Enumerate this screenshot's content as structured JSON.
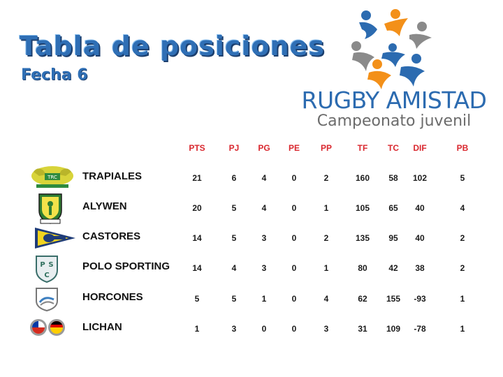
{
  "header": {
    "title": "Tabla de posiciones",
    "subtitle": "Fecha 6"
  },
  "brand": {
    "name": "RUGBY AMISTAD",
    "tagline": "Campeonato juvenil",
    "colors": {
      "blue": "#2c6bb0",
      "orange": "#f39019",
      "gray": "#8a8a8a"
    }
  },
  "table": {
    "columns": [
      "PTS",
      "PJ",
      "PG",
      "PE",
      "PP",
      "TF",
      "TC",
      "DIF",
      "PB"
    ],
    "rows": [
      {
        "team": "TRAPIALES",
        "crest": "trapiales-crest-icon",
        "stats": [
          "21",
          "6",
          "4",
          "0",
          "2",
          "160",
          "58",
          "102",
          "5"
        ]
      },
      {
        "team": "ALYWEN",
        "crest": "alywen-crest-icon",
        "stats": [
          "20",
          "5",
          "4",
          "0",
          "1",
          "105",
          "65",
          "40",
          "4"
        ]
      },
      {
        "team": "CASTORES",
        "crest": "castores-pennant-icon",
        "stats": [
          "14",
          "5",
          "3",
          "0",
          "2",
          "135",
          "95",
          "40",
          "2"
        ]
      },
      {
        "team": "POLO SPORTING",
        "crest": "polo-sporting-shield-icon",
        "stats": [
          "14",
          "4",
          "3",
          "0",
          "1",
          "80",
          "42",
          "38",
          "2"
        ]
      },
      {
        "team": "HORCONES",
        "crest": "horcones-shield-icon",
        "stats": [
          "5",
          "5",
          "1",
          "0",
          "4",
          "62",
          "155",
          "-93",
          "1"
        ]
      },
      {
        "team": "LICHAN",
        "crest": "lichan-flags-icon",
        "stats": [
          "1",
          "3",
          "0",
          "0",
          "3",
          "31",
          "109",
          "-78",
          "1"
        ]
      }
    ]
  }
}
